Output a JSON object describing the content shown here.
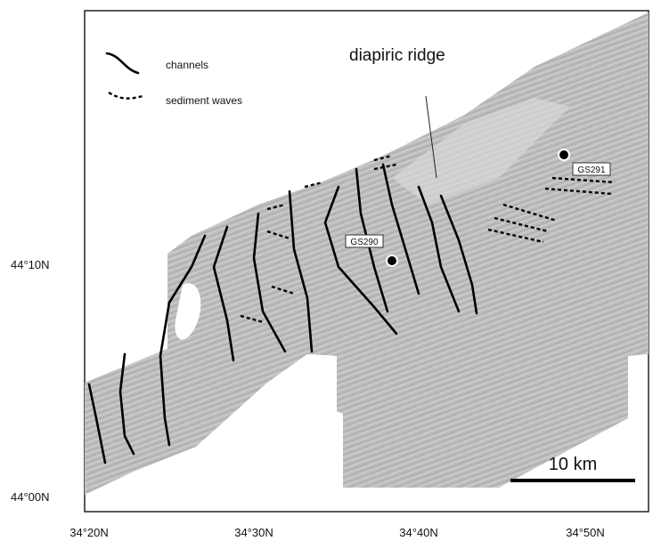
{
  "legend": {
    "items": [
      "channels",
      "sediment waves"
    ]
  },
  "annotations": {
    "ridge": "diapiric ridge",
    "stations": [
      "GS291",
      "GS290"
    ]
  },
  "axes": {
    "lat_labels": [
      "44°10N",
      "44°00N"
    ],
    "lon_labels": [
      "34°20N",
      "34°30N",
      "34°40N",
      "34°50N"
    ]
  },
  "scale_bar": "10 km"
}
